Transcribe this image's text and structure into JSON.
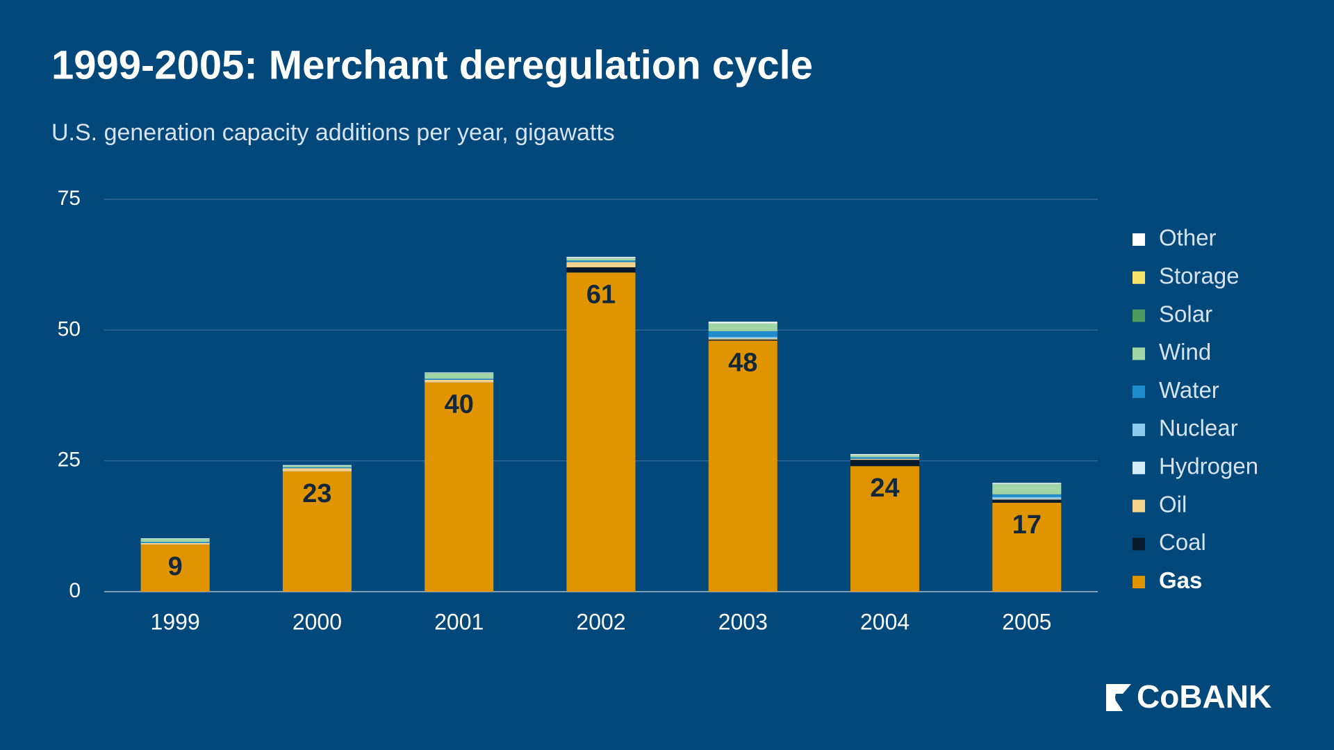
{
  "chart_data": {
    "type": "stacked_bar",
    "title": "1999-2005: Merchant deregulation cycle",
    "subtitle": "U.S. generation capacity additions per year, gigawatts",
    "categories": [
      "1999",
      "2000",
      "2001",
      "2002",
      "2003",
      "2004",
      "2005"
    ],
    "series": [
      {
        "name": "Gas",
        "color": "#e09400",
        "values": [
          9,
          23,
          40,
          61,
          48,
          24,
          17
        ]
      },
      {
        "name": "Coal",
        "color": "#08192b",
        "values": [
          0,
          0,
          0,
          1,
          0.2,
          1.2,
          0.6
        ]
      },
      {
        "name": "Oil",
        "color": "#f6d38c",
        "values": [
          0.3,
          0.6,
          0.5,
          1,
          0.2,
          0.2,
          0.1
        ]
      },
      {
        "name": "Hydrogen",
        "color": "#d4edf9",
        "values": [
          0,
          0,
          0,
          0,
          0,
          0,
          0.1
        ]
      },
      {
        "name": "Nuclear",
        "color": "#8ccaee",
        "values": [
          0,
          0,
          0,
          0,
          0.3,
          0,
          0.3
        ]
      },
      {
        "name": "Water",
        "color": "#1f8ccc",
        "values": [
          0.2,
          0.2,
          0.2,
          0.3,
          1.1,
          0.3,
          0.5
        ]
      },
      {
        "name": "Wind",
        "color": "#a2d5a6",
        "values": [
          0.6,
          0.3,
          1.1,
          0.5,
          1.5,
          0.4,
          2
        ]
      },
      {
        "name": "Solar",
        "color": "#4e9b5f",
        "values": [
          0,
          0,
          0,
          0,
          0,
          0,
          0
        ]
      },
      {
        "name": "Storage",
        "color": "#f6e56b",
        "values": [
          0,
          0,
          0,
          0,
          0,
          0,
          0
        ]
      },
      {
        "name": "Other",
        "color": "#ffffff",
        "values": [
          0.1,
          0.1,
          0.1,
          0.2,
          0.3,
          0.2,
          0.2
        ]
      }
    ],
    "ylim": [
      0,
      75
    ],
    "yticks": [
      0,
      25,
      50,
      75
    ],
    "grid": true,
    "legend": "right",
    "data_labels": true
  },
  "logo": "CoBANK"
}
